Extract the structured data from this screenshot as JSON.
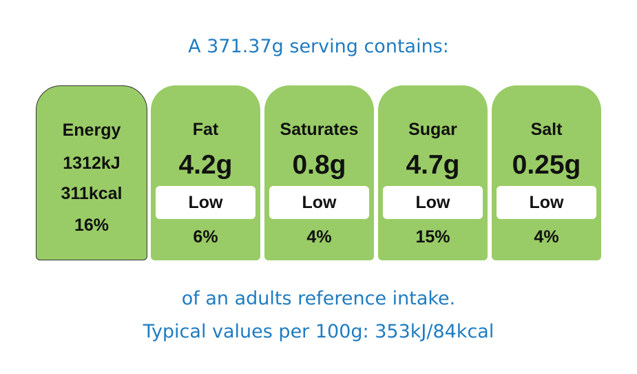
{
  "serving_text": "A 371.37g serving contains:",
  "energy": {
    "label": "Energy",
    "kj": "1312kJ",
    "kcal": "311kcal",
    "percent": "16%"
  },
  "nutrients": [
    {
      "name": "Fat",
      "amount": "4.2g",
      "level": "Low",
      "percent": "6%"
    },
    {
      "name": "Saturates",
      "amount": "0.8g",
      "level": "Low",
      "percent": "4%"
    },
    {
      "name": "Sugar",
      "amount": "4.7g",
      "level": "Low",
      "percent": "15%"
    },
    {
      "name": "Salt",
      "amount": "0.25g",
      "level": "Low",
      "percent": "4%"
    }
  ],
  "reference_text": "of an adults reference intake.",
  "typical_text": "Typical values per 100g: 353kJ/84kcal",
  "colors": {
    "low_green": "#99cc66",
    "headline_blue": "#1f7cc1"
  }
}
